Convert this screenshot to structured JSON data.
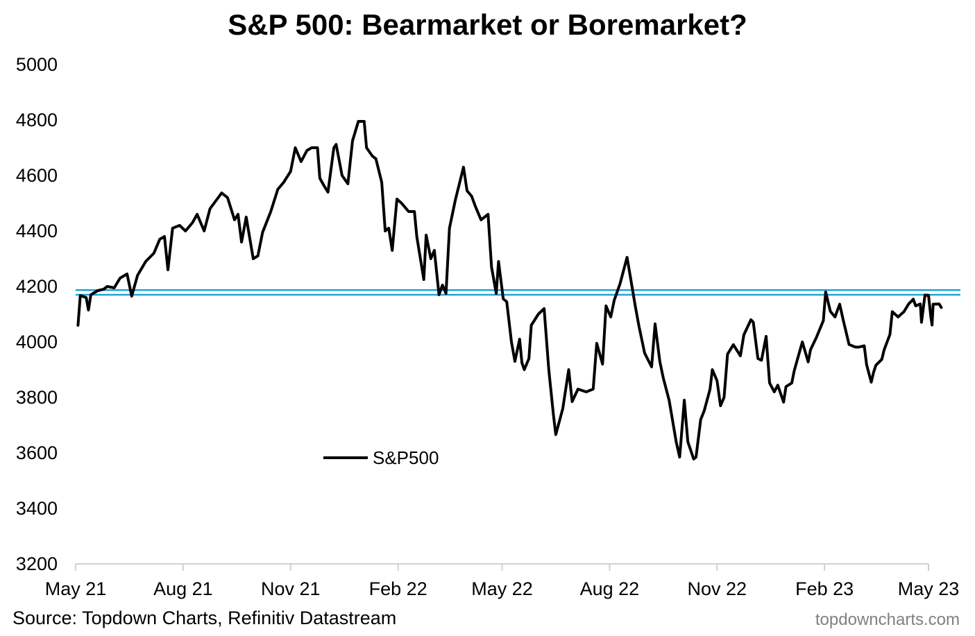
{
  "chart_data": {
    "type": "line",
    "title": "S&P 500: Bearmarket or Boremarket?",
    "xlabel": "",
    "ylabel": "",
    "ylim": [
      3200,
      5000
    ],
    "yticks": [
      3200,
      3400,
      3600,
      3800,
      4000,
      4200,
      4400,
      4600,
      4800,
      5000
    ],
    "xlim": [
      "2021-05-01",
      "2023-05-01"
    ],
    "xticks": [
      {
        "date": "2021-05-01",
        "label": "May 21"
      },
      {
        "date": "2021-08-01",
        "label": "Aug 21"
      },
      {
        "date": "2021-11-01",
        "label": "Nov 21"
      },
      {
        "date": "2022-02-01",
        "label": "Feb 22"
      },
      {
        "date": "2022-05-01",
        "label": "May 22"
      },
      {
        "date": "2022-08-01",
        "label": "Aug 22"
      },
      {
        "date": "2022-11-01",
        "label": "Nov 22"
      },
      {
        "date": "2023-02-01",
        "label": "Feb 23"
      },
      {
        "date": "2023-05-01",
        "label": "May 23"
      }
    ],
    "grid": false,
    "legend": {
      "position": "lower-center-left",
      "entries": [
        "S&P500"
      ]
    },
    "series": [
      {
        "name": "S&P500",
        "color": "#000000",
        "points": [
          [
            "2021-05-03",
            4060
          ],
          [
            "2021-05-05",
            4167
          ],
          [
            "2021-05-10",
            4160
          ],
          [
            "2021-05-12",
            4115
          ],
          [
            "2021-05-14",
            4170
          ],
          [
            "2021-05-20",
            4185
          ],
          [
            "2021-05-25",
            4190
          ],
          [
            "2021-05-28",
            4200
          ],
          [
            "2021-06-03",
            4195
          ],
          [
            "2021-06-08",
            4230
          ],
          [
            "2021-06-14",
            4245
          ],
          [
            "2021-06-18",
            4165
          ],
          [
            "2021-06-23",
            4240
          ],
          [
            "2021-06-30",
            4290
          ],
          [
            "2021-07-07",
            4320
          ],
          [
            "2021-07-12",
            4370
          ],
          [
            "2021-07-16",
            4380
          ],
          [
            "2021-07-19",
            4260
          ],
          [
            "2021-07-23",
            4410
          ],
          [
            "2021-07-29",
            4420
          ],
          [
            "2021-08-03",
            4400
          ],
          [
            "2021-08-09",
            4430
          ],
          [
            "2021-08-13",
            4460
          ],
          [
            "2021-08-19",
            4400
          ],
          [
            "2021-08-24",
            4480
          ],
          [
            "2021-08-31",
            4520
          ],
          [
            "2021-09-03",
            4537
          ],
          [
            "2021-09-08",
            4520
          ],
          [
            "2021-09-14",
            4440
          ],
          [
            "2021-09-17",
            4460
          ],
          [
            "2021-09-20",
            4360
          ],
          [
            "2021-09-24",
            4450
          ],
          [
            "2021-09-30",
            4300
          ],
          [
            "2021-10-04",
            4310
          ],
          [
            "2021-10-08",
            4395
          ],
          [
            "2021-10-15",
            4470
          ],
          [
            "2021-10-21",
            4550
          ],
          [
            "2021-10-26",
            4575
          ],
          [
            "2021-11-01",
            4615
          ],
          [
            "2021-11-05",
            4700
          ],
          [
            "2021-11-10",
            4650
          ],
          [
            "2021-11-15",
            4690
          ],
          [
            "2021-11-19",
            4700
          ],
          [
            "2021-11-24",
            4700
          ],
          [
            "2021-11-26",
            4590
          ],
          [
            "2021-11-30",
            4560
          ],
          [
            "2021-12-03",
            4540
          ],
          [
            "2021-12-08",
            4700
          ],
          [
            "2021-12-10",
            4712
          ],
          [
            "2021-12-15",
            4600
          ],
          [
            "2021-12-20",
            4570
          ],
          [
            "2021-12-24",
            4725
          ],
          [
            "2021-12-29",
            4795
          ],
          [
            "2022-01-03",
            4795
          ],
          [
            "2022-01-05",
            4700
          ],
          [
            "2022-01-10",
            4670
          ],
          [
            "2022-01-13",
            4660
          ],
          [
            "2022-01-18",
            4575
          ],
          [
            "2022-01-21",
            4400
          ],
          [
            "2022-01-24",
            4410
          ],
          [
            "2022-01-27",
            4330
          ],
          [
            "2022-01-31",
            4515
          ],
          [
            "2022-02-04",
            4500
          ],
          [
            "2022-02-10",
            4470
          ],
          [
            "2022-02-15",
            4470
          ],
          [
            "2022-02-17",
            4380
          ],
          [
            "2022-02-23",
            4225
          ],
          [
            "2022-02-25",
            4385
          ],
          [
            "2022-03-01",
            4300
          ],
          [
            "2022-03-04",
            4330
          ],
          [
            "2022-03-08",
            4170
          ],
          [
            "2022-03-11",
            4205
          ],
          [
            "2022-03-14",
            4175
          ],
          [
            "2022-03-17",
            4410
          ],
          [
            "2022-03-22",
            4512
          ],
          [
            "2022-03-29",
            4630
          ],
          [
            "2022-04-01",
            4545
          ],
          [
            "2022-04-05",
            4525
          ],
          [
            "2022-04-08",
            4490
          ],
          [
            "2022-04-13",
            4440
          ],
          [
            "2022-04-19",
            4460
          ],
          [
            "2022-04-22",
            4270
          ],
          [
            "2022-04-26",
            4175
          ],
          [
            "2022-04-28",
            4290
          ],
          [
            "2022-05-02",
            4155
          ],
          [
            "2022-05-05",
            4145
          ],
          [
            "2022-05-09",
            4000
          ],
          [
            "2022-05-12",
            3930
          ],
          [
            "2022-05-16",
            4010
          ],
          [
            "2022-05-18",
            3925
          ],
          [
            "2022-05-20",
            3900
          ],
          [
            "2022-05-24",
            3940
          ],
          [
            "2022-05-26",
            4060
          ],
          [
            "2022-06-01",
            4100
          ],
          [
            "2022-06-06",
            4120
          ],
          [
            "2022-06-10",
            3900
          ],
          [
            "2022-06-14",
            3735
          ],
          [
            "2022-06-16",
            3666
          ],
          [
            "2022-06-22",
            3760
          ],
          [
            "2022-06-27",
            3900
          ],
          [
            "2022-06-30",
            3785
          ],
          [
            "2022-07-05",
            3830
          ],
          [
            "2022-07-12",
            3820
          ],
          [
            "2022-07-18",
            3830
          ],
          [
            "2022-07-21",
            3995
          ],
          [
            "2022-07-26",
            3920
          ],
          [
            "2022-07-29",
            4130
          ],
          [
            "2022-08-02",
            4090
          ],
          [
            "2022-08-05",
            4150
          ],
          [
            "2022-08-10",
            4210
          ],
          [
            "2022-08-16",
            4305
          ],
          [
            "2022-08-19",
            4230
          ],
          [
            "2022-08-23",
            4130
          ],
          [
            "2022-08-26",
            4060
          ],
          [
            "2022-08-31",
            3960
          ],
          [
            "2022-09-06",
            3910
          ],
          [
            "2022-09-09",
            4065
          ],
          [
            "2022-09-13",
            3930
          ],
          [
            "2022-09-16",
            3870
          ],
          [
            "2022-09-21",
            3790
          ],
          [
            "2022-09-27",
            3640
          ],
          [
            "2022-09-30",
            3585
          ],
          [
            "2022-10-04",
            3790
          ],
          [
            "2022-10-07",
            3640
          ],
          [
            "2022-10-12",
            3578
          ],
          [
            "2022-10-14",
            3585
          ],
          [
            "2022-10-18",
            3720
          ],
          [
            "2022-10-21",
            3752
          ],
          [
            "2022-10-26",
            3830
          ],
          [
            "2022-10-28",
            3900
          ],
          [
            "2022-11-01",
            3860
          ],
          [
            "2022-11-04",
            3770
          ],
          [
            "2022-11-07",
            3800
          ],
          [
            "2022-11-10",
            3956
          ],
          [
            "2022-11-15",
            3990
          ],
          [
            "2022-11-21",
            3950
          ],
          [
            "2022-11-24",
            4026
          ],
          [
            "2022-11-30",
            4080
          ],
          [
            "2022-12-02",
            4071
          ],
          [
            "2022-12-06",
            3940
          ],
          [
            "2022-12-09",
            3934
          ],
          [
            "2022-12-13",
            4020
          ],
          [
            "2022-12-16",
            3852
          ],
          [
            "2022-12-20",
            3820
          ],
          [
            "2022-12-23",
            3844
          ],
          [
            "2022-12-28",
            3783
          ],
          [
            "2022-12-30",
            3839
          ],
          [
            "2023-01-04",
            3852
          ],
          [
            "2023-01-06",
            3895
          ],
          [
            "2023-01-11",
            3970
          ],
          [
            "2023-01-13",
            4000
          ],
          [
            "2023-01-18",
            3928
          ],
          [
            "2023-01-20",
            3972
          ],
          [
            "2023-01-25",
            4016
          ],
          [
            "2023-01-31",
            4077
          ],
          [
            "2023-02-02",
            4180
          ],
          [
            "2023-02-06",
            4110
          ],
          [
            "2023-02-10",
            4090
          ],
          [
            "2023-02-14",
            4136
          ],
          [
            "2023-02-17",
            4079
          ],
          [
            "2023-02-22",
            3991
          ],
          [
            "2023-02-27",
            3982
          ],
          [
            "2023-03-02",
            3981
          ],
          [
            "2023-03-07",
            3986
          ],
          [
            "2023-03-09",
            3918
          ],
          [
            "2023-03-13",
            3855
          ],
          [
            "2023-03-15",
            3891
          ],
          [
            "2023-03-17",
            3916
          ],
          [
            "2023-03-22",
            3937
          ],
          [
            "2023-03-24",
            3971
          ],
          [
            "2023-03-29",
            4027
          ],
          [
            "2023-03-31",
            4109
          ],
          [
            "2023-04-05",
            4090
          ],
          [
            "2023-04-10",
            4109
          ],
          [
            "2023-04-14",
            4137
          ],
          [
            "2023-04-18",
            4154
          ],
          [
            "2023-04-20",
            4130
          ],
          [
            "2023-04-24",
            4137
          ],
          [
            "2023-04-25",
            4071
          ],
          [
            "2023-04-28",
            4169
          ],
          [
            "2023-05-01",
            4168
          ],
          [
            "2023-05-03",
            4090
          ],
          [
            "2023-05-04",
            4061
          ],
          [
            "2023-05-05",
            4136
          ],
          [
            "2023-05-10",
            4137
          ],
          [
            "2023-05-12",
            4124
          ]
        ]
      }
    ],
    "reference_lines": [
      {
        "y": 4187,
        "color": "#1ea3d8"
      },
      {
        "y": 4170,
        "color": "#1ea3d8"
      }
    ],
    "source": "Source: Topdown Charts, Refinitiv Datastream",
    "watermark": "topdowncharts.com"
  }
}
